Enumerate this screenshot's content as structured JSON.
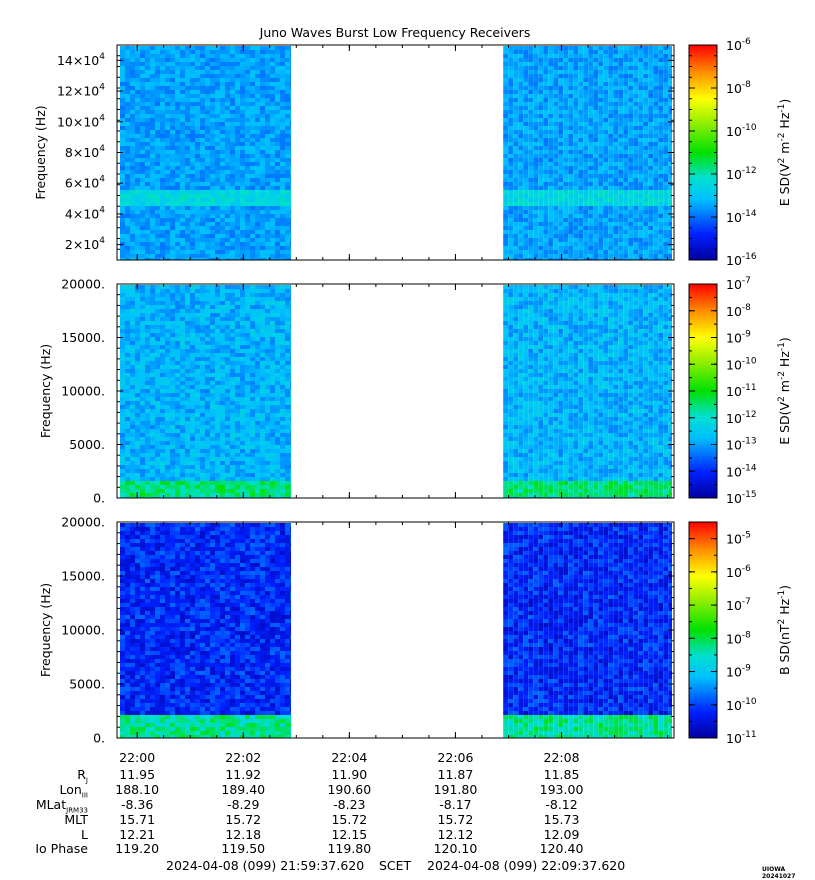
{
  "title": "Juno Waves Burst Low Frequency Receivers",
  "colors": {
    "frame": "#000000",
    "gap": "#ffffff"
  },
  "panels": [
    {
      "ylabel": "Frequency (Hz)",
      "cbar_label_html": "E SD(V<tspan baseline-shift='super' font-size='9'>2</tspan> m<tspan baseline-shift='super' font-size='9'>-2</tspan> Hz<tspan baseline-shift='super' font-size='9'>-1</tspan>)",
      "yticks": [
        {
          "mant": "2×10",
          "exp": "4",
          "v": 20000
        },
        {
          "mant": "4×10",
          "exp": "4",
          "v": 40000
        },
        {
          "mant": "6×10",
          "exp": "4",
          "v": 60000
        },
        {
          "mant": "8×10",
          "exp": "4",
          "v": 80000
        },
        {
          "mant": "10×10",
          "exp": "4",
          "v": 100000
        },
        {
          "mant": "12×10",
          "exp": "4",
          "v": 120000
        },
        {
          "mant": "14×10",
          "exp": "4",
          "v": 140000
        }
      ],
      "cbar_ticks": [
        {
          "exp": "-6",
          "v": -6
        },
        {
          "exp": "-8",
          "v": -8
        },
        {
          "exp": "-10",
          "v": -10
        },
        {
          "exp": "-12",
          "v": -12
        },
        {
          "exp": "-14",
          "v": -14
        },
        {
          "exp": "-16",
          "v": -16
        }
      ]
    },
    {
      "ylabel": "Frequency (Hz)",
      "cbar_label_html": "E SD(V<tspan baseline-shift='super' font-size='9'>2</tspan> m<tspan baseline-shift='super' font-size='9'>-2</tspan> Hz<tspan baseline-shift='super' font-size='9'>-1</tspan>)",
      "yticks": [
        {
          "label": "0.",
          "v": 0
        },
        {
          "label": "5000.",
          "v": 5000
        },
        {
          "label": "10000.",
          "v": 10000
        },
        {
          "label": "15000.",
          "v": 15000
        },
        {
          "label": "20000.",
          "v": 20000
        }
      ],
      "cbar_ticks": [
        {
          "exp": "-7",
          "v": -7
        },
        {
          "exp": "-8",
          "v": -8
        },
        {
          "exp": "-9",
          "v": -9
        },
        {
          "exp": "-10",
          "v": -10
        },
        {
          "exp": "-11",
          "v": -11
        },
        {
          "exp": "-12",
          "v": -12
        },
        {
          "exp": "-13",
          "v": -13
        },
        {
          "exp": "-14",
          "v": -14
        },
        {
          "exp": "-15",
          "v": -15
        }
      ]
    },
    {
      "ylabel": "Frequency (Hz)",
      "cbar_label_html": "B SD(nT<tspan baseline-shift='super' font-size='9'>2</tspan> Hz<tspan baseline-shift='super' font-size='9'>-1</tspan>)",
      "yticks": [
        {
          "label": "0.",
          "v": 0
        },
        {
          "label": "5000.",
          "v": 5000
        },
        {
          "label": "10000.",
          "v": 10000
        },
        {
          "label": "15000.",
          "v": 15000
        },
        {
          "label": "20000.",
          "v": 20000
        }
      ],
      "cbar_ticks": [
        {
          "exp": "-5",
          "v": -5
        },
        {
          "exp": "-6",
          "v": -6
        },
        {
          "exp": "-7",
          "v": -7
        },
        {
          "exp": "-8",
          "v": -8
        },
        {
          "exp": "-9",
          "v": -9
        },
        {
          "exp": "-10",
          "v": -10
        },
        {
          "exp": "-11",
          "v": -11
        }
      ]
    }
  ],
  "chart_data": [
    {
      "type": "heatmap",
      "title": "Juno Waves Burst Low Frequency Receivers",
      "ylabel": "Frequency (Hz)",
      "zlabel": "E SD(V2 m-2 Hz-1)",
      "ylim": [
        10000,
        150000
      ],
      "zlim_log10": [
        -16,
        -6
      ],
      "data_segments_minutes": [
        [
          -0.4,
          2.9
        ],
        [
          6.9,
          10.1
        ]
      ],
      "features": [
        {
          "band_hz": [
            45000,
            55000
          ],
          "log10_level": -12.5
        }
      ],
      "background_log10": -13.5
    },
    {
      "type": "heatmap",
      "ylabel": "Frequency (Hz)",
      "zlabel": "E SD(V2 m-2 Hz-1)",
      "ylim": [
        0,
        20000
      ],
      "zlim_log10": [
        -15,
        -7
      ],
      "data_segments_minutes": [
        [
          -0.4,
          2.9
        ],
        [
          6.9,
          10.1
        ]
      ],
      "features": [
        {
          "band_hz": [
            0,
            1500
          ],
          "log10_level": -11.5
        }
      ],
      "background_log10": -12.8
    },
    {
      "type": "heatmap",
      "ylabel": "Frequency (Hz)",
      "zlabel": "B SD(nT2 Hz-1)",
      "ylim": [
        0,
        20000
      ],
      "zlim_log10": [
        -11,
        -4.5
      ],
      "data_segments_minutes": [
        [
          -0.4,
          2.9
        ],
        [
          6.9,
          10.1
        ]
      ],
      "features": [
        {
          "band_hz": [
            0,
            2000
          ],
          "log10_level": -8.3
        }
      ],
      "background_log10": -10.2
    }
  ],
  "xaxis": {
    "ticks": [
      {
        "label": "22:00",
        "min": 0
      },
      {
        "label": "22:02",
        "min": 2
      },
      {
        "label": "22:04",
        "min": 4
      },
      {
        "label": "22:06",
        "min": 6
      },
      {
        "label": "22:08",
        "min": 8
      }
    ],
    "range_min": [
      -0.38,
      10.12
    ]
  },
  "ephemeris": [
    {
      "label_main": "R",
      "label_sub": "J",
      "values": [
        "11.95",
        "11.92",
        "11.90",
        "11.87",
        "11.85"
      ]
    },
    {
      "label_main": "Lon",
      "label_sub": "III",
      "values": [
        "188.10",
        "189.40",
        "190.60",
        "191.80",
        "193.00"
      ]
    },
    {
      "label_main": "MLat",
      "label_sub": "JRM33",
      "values": [
        "-8.36",
        "-8.29",
        "-8.23",
        "-8.17",
        "-8.12"
      ]
    },
    {
      "label_main": "MLT",
      "label_sub": "",
      "values": [
        "15.71",
        "15.72",
        "15.72",
        "15.72",
        "15.73"
      ]
    },
    {
      "label_main": "L",
      "label_sub": "",
      "values": [
        "12.21",
        "12.18",
        "12.15",
        "12.12",
        "12.09"
      ]
    },
    {
      "label_main": "Io Phase",
      "label_sub": "",
      "values": [
        "119.20",
        "119.50",
        "119.80",
        "120.10",
        "120.40"
      ]
    }
  ],
  "footer": {
    "start": "2024-04-08 (099) 21:59:37.620",
    "scet": "SCET",
    "end": "2024-04-08 (099) 22:09:37.620",
    "credit": "UIOWA 20241027"
  }
}
